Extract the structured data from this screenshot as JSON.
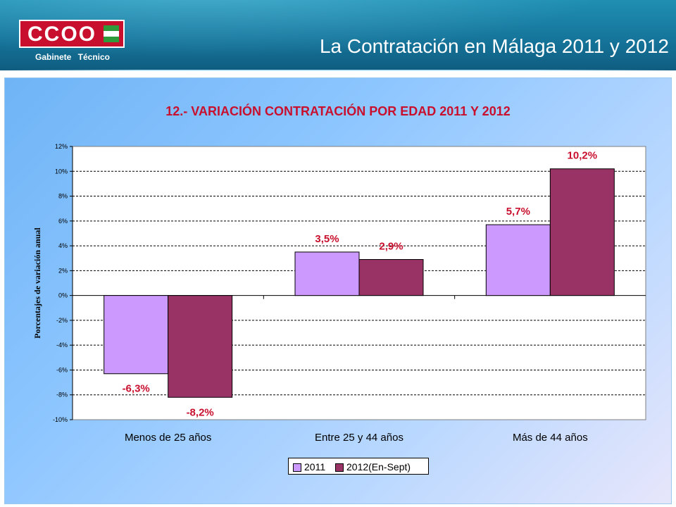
{
  "header": {
    "logo_text": "CCOO",
    "logo_subtitle": "Gabinete Técnico",
    "title": "La Contratación en Málaga 2011 y 2012"
  },
  "colors": {
    "brand_red": "#c8102e",
    "series_2011": "#cc99ff",
    "series_2012": "#993366",
    "data_label": "#c8102e"
  },
  "chart_data": {
    "type": "bar",
    "title": "12.- VARIACIÓN CONTRATACIÓN POR EDAD 2011 Y 2012",
    "xlabel": "",
    "ylabel": "Porcentajes de variación anual",
    "ylim": [
      -10,
      12
    ],
    "y_ticks": [
      12,
      10,
      8,
      6,
      4,
      2,
      0,
      -2,
      -4,
      -6,
      -8,
      -10
    ],
    "y_tick_labels": [
      "12%",
      "10%",
      "8%",
      "6%",
      "4%",
      "2%",
      "0%",
      "-2%",
      "-4%",
      "-6%",
      "-8%",
      "-10%"
    ],
    "grid": "horizontal dashed",
    "legend_position": "bottom",
    "categories": [
      "Menos de 25 años",
      "Entre 25 y 44 años",
      "Más de 44 años"
    ],
    "series": [
      {
        "name": "2011",
        "values": [
          -6.3,
          3.5,
          5.7
        ],
        "labels": [
          "-6,3%",
          "3,5%",
          "5,7%"
        ]
      },
      {
        "name": "2012(En-Sept)",
        "values": [
          -8.2,
          2.9,
          10.2
        ],
        "labels": [
          "-8,2%",
          "2,9%",
          "10,2%"
        ]
      }
    ]
  }
}
